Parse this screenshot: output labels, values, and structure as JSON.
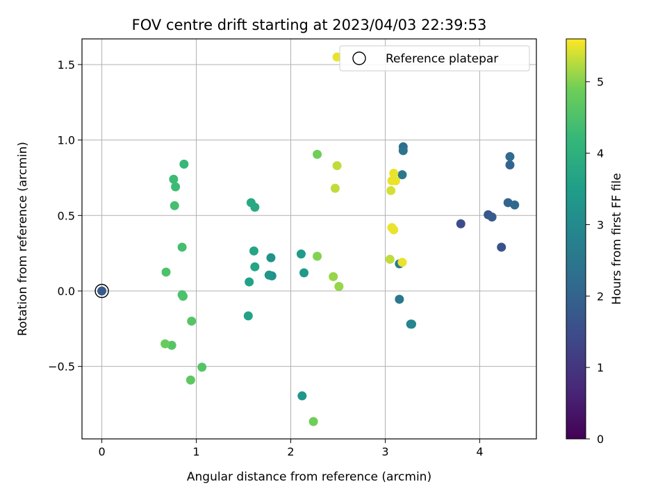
{
  "chart_data": {
    "type": "scatter",
    "title": "FOV centre drift starting at 2023/04/03 22:39:53",
    "xlabel": "Angular distance from reference (arcmin)",
    "ylabel": "Rotation from reference (arcmin)",
    "xlim": [
      -0.21,
      4.6
    ],
    "ylim": [
      -0.98,
      1.67
    ],
    "xticks": [
      0,
      1,
      2,
      3,
      4
    ],
    "xtick_labels": [
      "0",
      "1",
      "2",
      "3",
      "4"
    ],
    "yticks": [
      -0.5,
      0.0,
      0.5,
      1.0,
      1.5
    ],
    "ytick_labels": [
      "−0.5",
      "0.0",
      "0.5",
      "1.0",
      "1.5"
    ],
    "grid": true,
    "legend": {
      "placement": "top-right",
      "entries": [
        "Reference platepar"
      ]
    },
    "colorbar": {
      "label": "Hours from first FF file",
      "range": [
        0,
        5.6
      ],
      "ticks": [
        0,
        1,
        2,
        3,
        4,
        5
      ],
      "tick_labels": [
        "0",
        "1",
        "2",
        "3",
        "4",
        "5"
      ],
      "colormap": "viridis"
    },
    "reference": {
      "x": 0,
      "y": 0
    },
    "points": [
      {
        "x": 0.0,
        "y": 0.0,
        "c": 1.8
      },
      {
        "x": 3.8,
        "y": 0.445,
        "c": 1.5
      },
      {
        "x": 4.23,
        "y": 0.29,
        "c": 1.6
      },
      {
        "x": 4.09,
        "y": 0.505,
        "c": 1.7
      },
      {
        "x": 4.13,
        "y": 0.49,
        "c": 1.8
      },
      {
        "x": 4.3,
        "y": 0.585,
        "c": 2.0
      },
      {
        "x": 4.37,
        "y": 0.57,
        "c": 2.1
      },
      {
        "x": 4.32,
        "y": 0.835,
        "c": 2.0
      },
      {
        "x": 4.32,
        "y": 0.89,
        "c": 2.2
      },
      {
        "x": 3.19,
        "y": 0.955,
        "c": 2.3
      },
      {
        "x": 3.19,
        "y": 0.93,
        "c": 2.4
      },
      {
        "x": 3.18,
        "y": 0.77,
        "c": 2.5
      },
      {
        "x": 3.15,
        "y": 0.18,
        "c": 2.6
      },
      {
        "x": 3.15,
        "y": -0.055,
        "c": 2.5
      },
      {
        "x": 3.27,
        "y": -0.22,
        "c": 2.7
      },
      {
        "x": 3.28,
        "y": -0.22,
        "c": 2.9
      },
      {
        "x": 1.8,
        "y": 0.1,
        "c": 3.2
      },
      {
        "x": 1.77,
        "y": 0.105,
        "c": 3.3
      },
      {
        "x": 1.79,
        "y": 0.22,
        "c": 3.2
      },
      {
        "x": 2.14,
        "y": 0.12,
        "c": 3.4
      },
      {
        "x": 2.11,
        "y": 0.245,
        "c": 3.4
      },
      {
        "x": 2.12,
        "y": -0.695,
        "c": 3.3
      },
      {
        "x": 1.55,
        "y": -0.165,
        "c": 3.6
      },
      {
        "x": 1.56,
        "y": 0.06,
        "c": 3.6
      },
      {
        "x": 1.62,
        "y": 0.16,
        "c": 3.7
      },
      {
        "x": 1.61,
        "y": 0.265,
        "c": 3.7
      },
      {
        "x": 1.58,
        "y": 0.585,
        "c": 3.8
      },
      {
        "x": 1.62,
        "y": 0.555,
        "c": 3.8
      },
      {
        "x": 0.87,
        "y": 0.84,
        "c": 4.2
      },
      {
        "x": 0.76,
        "y": 0.74,
        "c": 4.3
      },
      {
        "x": 0.78,
        "y": 0.69,
        "c": 4.3
      },
      {
        "x": 0.77,
        "y": 0.565,
        "c": 4.4
      },
      {
        "x": 0.85,
        "y": 0.29,
        "c": 4.4
      },
      {
        "x": 0.68,
        "y": 0.125,
        "c": 4.5
      },
      {
        "x": 0.85,
        "y": -0.025,
        "c": 4.5
      },
      {
        "x": 0.86,
        "y": -0.035,
        "c": 4.5
      },
      {
        "x": 0.95,
        "y": -0.2,
        "c": 4.6
      },
      {
        "x": 0.74,
        "y": -0.36,
        "c": 4.6
      },
      {
        "x": 0.67,
        "y": -0.35,
        "c": 4.8
      },
      {
        "x": 1.06,
        "y": -0.505,
        "c": 4.6
      },
      {
        "x": 0.94,
        "y": -0.59,
        "c": 4.7
      },
      {
        "x": 2.28,
        "y": 0.905,
        "c": 4.9
      },
      {
        "x": 2.28,
        "y": 0.23,
        "c": 5.0
      },
      {
        "x": 2.45,
        "y": 0.095,
        "c": 5.1
      },
      {
        "x": 2.51,
        "y": 0.03,
        "c": 5.1
      },
      {
        "x": 2.24,
        "y": -0.865,
        "c": 4.9
      },
      {
        "x": 2.49,
        "y": 0.83,
        "c": 5.3
      },
      {
        "x": 2.47,
        "y": 0.68,
        "c": 5.3
      },
      {
        "x": 2.49,
        "y": 1.55,
        "c": 5.5
      },
      {
        "x": 3.09,
        "y": 0.78,
        "c": 5.5
      },
      {
        "x": 3.07,
        "y": 0.73,
        "c": 5.5
      },
      {
        "x": 3.11,
        "y": 0.73,
        "c": 5.5
      },
      {
        "x": 3.06,
        "y": 0.665,
        "c": 5.4
      },
      {
        "x": 3.07,
        "y": 0.42,
        "c": 5.5
      },
      {
        "x": 3.09,
        "y": 0.405,
        "c": 5.5
      },
      {
        "x": 3.05,
        "y": 0.21,
        "c": 5.3
      },
      {
        "x": 3.18,
        "y": 0.19,
        "c": 5.5
      }
    ]
  }
}
